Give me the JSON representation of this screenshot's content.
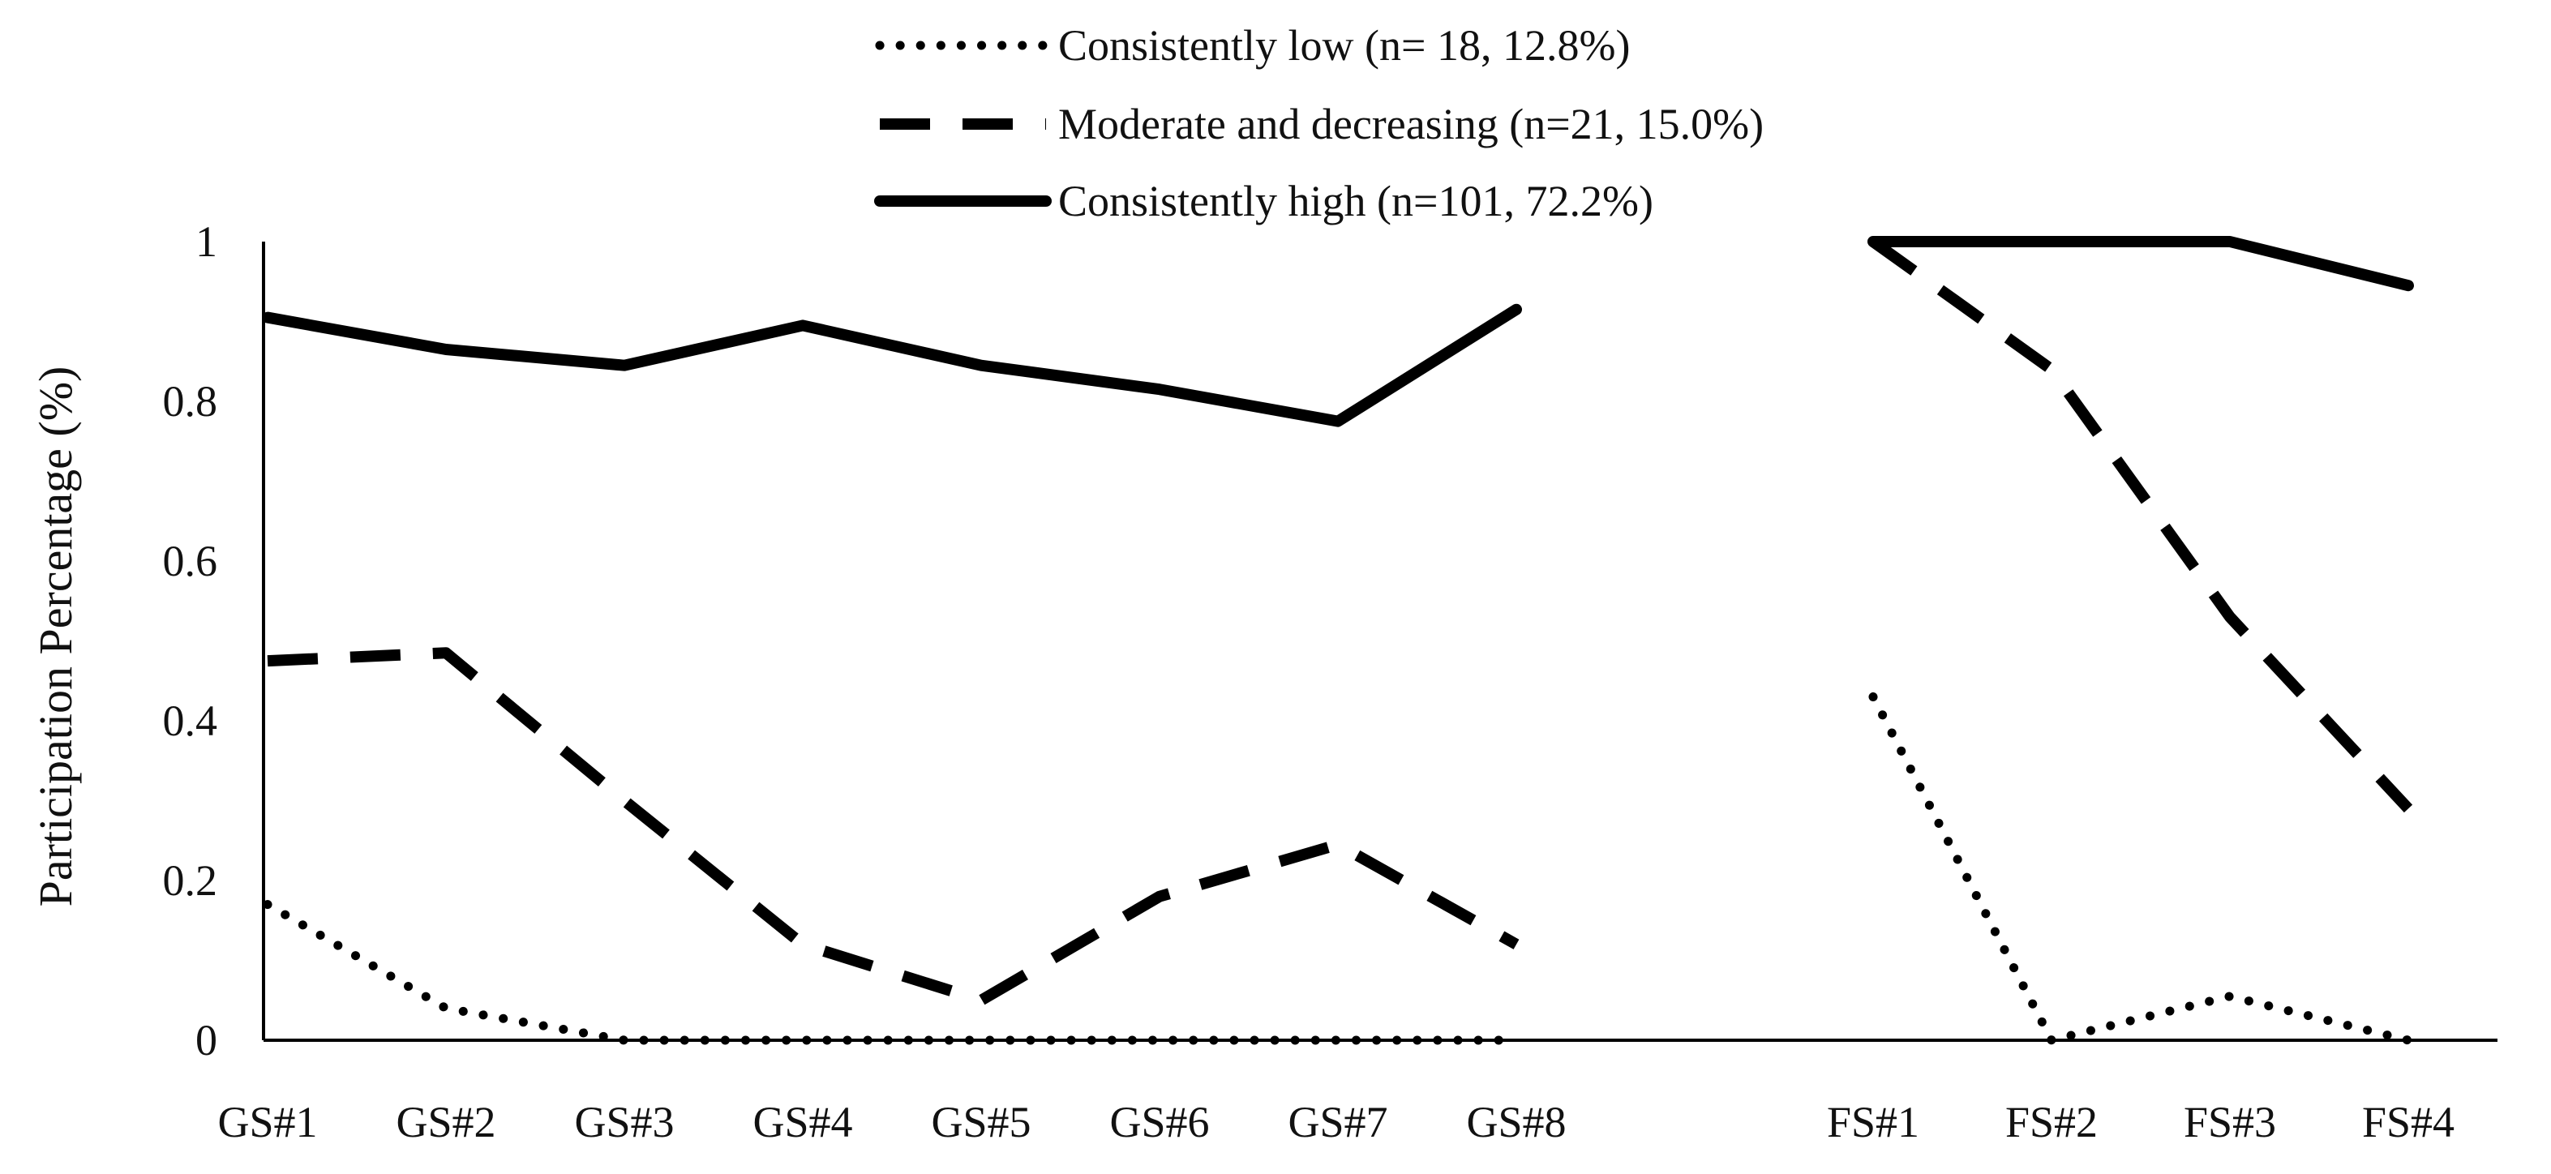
{
  "chart_data": {
    "type": "line",
    "ylabel": "Participation Percentage (%)",
    "xlabel": "",
    "categories": [
      "GS#1",
      "GS#2",
      "GS#3",
      "GS#4",
      "GS#5",
      "GS#6",
      "GS#7",
      "GS#8",
      "",
      "FS#1",
      "FS#2",
      "FS#3",
      "FS#4"
    ],
    "ylim": [
      0,
      1
    ],
    "yticks": [
      "0",
      "0.2",
      "0.4",
      "0.6",
      "0.8",
      "1"
    ],
    "ytick_values": [
      0,
      0.2,
      0.4,
      0.6,
      0.8,
      1
    ],
    "grid": false,
    "legend_position": "top",
    "series": [
      {
        "name": "Consistently low (n= 18, 12.8%)",
        "style": "dotted",
        "values": [
          0.17,
          0.04,
          0.0,
          0.0,
          0.0,
          0.0,
          0.0,
          0.0,
          null,
          0.43,
          0.0,
          0.055,
          0.0
        ]
      },
      {
        "name": "Moderate and decreasing (n=21, 15.0%)",
        "style": "dashed",
        "values": [
          0.475,
          0.485,
          0.3,
          0.12,
          0.05,
          0.18,
          0.245,
          0.12,
          null,
          1.0,
          0.84,
          0.53,
          0.29
        ]
      },
      {
        "name": "Consistently high (n=101, 72.2%)",
        "style": "solid",
        "values": [
          0.905,
          0.865,
          0.845,
          0.895,
          0.845,
          0.815,
          0.775,
          0.915,
          null,
          1.0,
          1.0,
          1.0,
          0.945
        ]
      }
    ],
    "line_color": "#000000"
  }
}
